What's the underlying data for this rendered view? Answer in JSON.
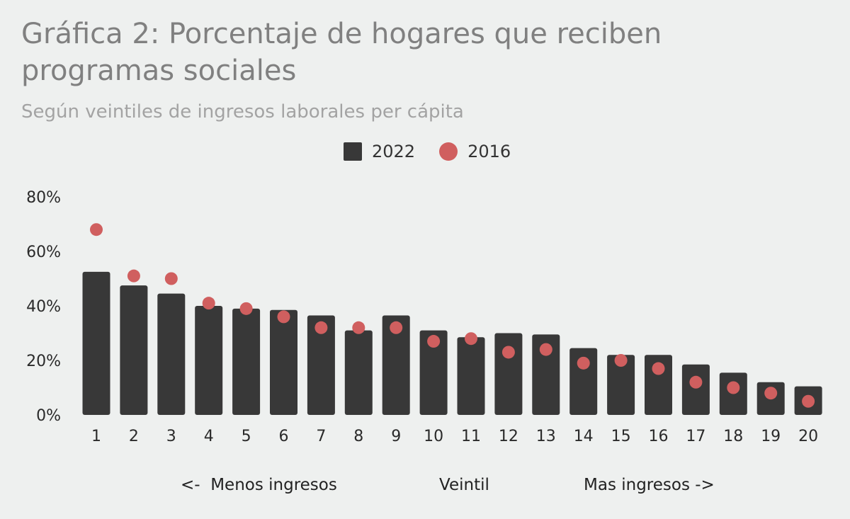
{
  "chart_data": {
    "type": "bar",
    "title": "Gráfica 2: Porcentaje de hogares que reciben programas sociales",
    "subtitle": "Según veintiles de ingresos laborales per cápita",
    "categories": [
      "1",
      "2",
      "3",
      "4",
      "5",
      "6",
      "7",
      "8",
      "9",
      "10",
      "11",
      "12",
      "13",
      "14",
      "15",
      "16",
      "17",
      "18",
      "19",
      "20"
    ],
    "series": [
      {
        "name": "2022",
        "kind": "bar",
        "color": "#383838",
        "values": [
          52.5,
          47.5,
          44.5,
          40,
          39,
          38.5,
          36.5,
          31,
          36.5,
          31,
          28.5,
          30,
          29.5,
          24.5,
          22,
          22,
          18.5,
          15.5,
          12,
          10.5
        ]
      },
      {
        "name": "2016",
        "kind": "point",
        "color": "#d05f5f",
        "values": [
          68,
          51,
          50,
          41,
          39,
          36,
          32,
          32,
          32,
          27,
          28,
          23,
          24,
          19,
          20,
          17,
          12,
          10,
          8,
          5
        ]
      }
    ],
    "yticks": [
      "0%",
      "20%",
      "40%",
      "60%",
      "80%"
    ],
    "ylim": [
      0,
      80
    ],
    "xlabel": "Veintil",
    "xnote_left": "<-  Menos ingresos",
    "xnote_right": "Mas ingresos ->",
    "legend": "top-center",
    "grid": false
  }
}
